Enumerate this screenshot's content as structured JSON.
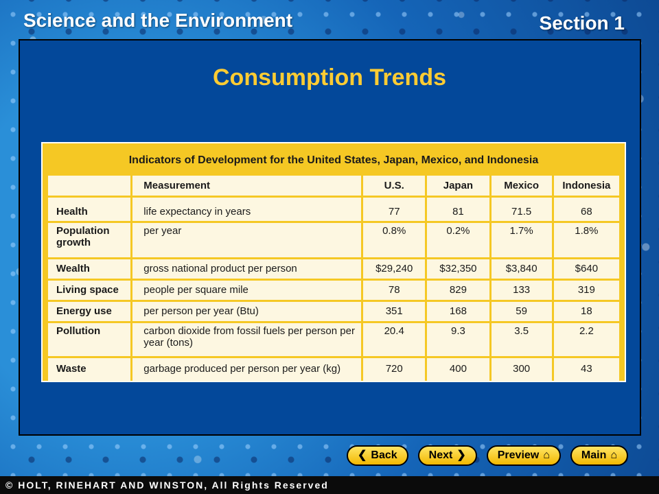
{
  "header": {
    "title": "Science and the Environment",
    "section": "Section 1"
  },
  "slide": {
    "title": "Consumption Trends"
  },
  "table": {
    "caption": "Indicators of Development for the United States, Japan, Mexico, and Indonesia",
    "columns": [
      "",
      "Measurement",
      "U.S.",
      "Japan",
      "Mexico",
      "Indonesia"
    ],
    "rows": [
      {
        "category": "Health",
        "measurement": "life expectancy in years",
        "us": "77",
        "japan": "81",
        "mexico": "71.5",
        "indonesia": "68"
      },
      {
        "category": "Population growth",
        "measurement": "per year",
        "us": "0.8%",
        "japan": "0.2%",
        "mexico": "1.7%",
        "indonesia": "1.8%"
      },
      {
        "category": "Wealth",
        "measurement": "gross national product per person",
        "us": "$29,240",
        "japan": "$32,350",
        "mexico": "$3,840",
        "indonesia": "$640"
      },
      {
        "category": "Living space",
        "measurement": "people per square mile",
        "us": "78",
        "japan": "829",
        "mexico": "133",
        "indonesia": "319"
      },
      {
        "category": "Energy use",
        "measurement": "per person per year (Btu)",
        "us": "351",
        "japan": "168",
        "mexico": "59",
        "indonesia": "18"
      },
      {
        "category": "Pollution",
        "measurement": "carbon dioxide from fossil fuels per person per year (tons)",
        "us": "20.4",
        "japan": "9.3",
        "mexico": "3.5",
        "indonesia": "2.2"
      },
      {
        "category": "Waste",
        "measurement": "garbage produced per person per year (kg)",
        "us": "720",
        "japan": "400",
        "mexico": "300",
        "indonesia": "43"
      }
    ]
  },
  "nav": {
    "back_label": "Back",
    "next_label": "Next",
    "preview_label": "Preview",
    "main_label": "Main",
    "back_icon": "chevron-left-icon",
    "next_icon": "chevron-right-icon",
    "home_icon": "home-icon"
  },
  "footer": {
    "copyright": "© HOLT, RINEHART AND WINSTON, All Rights Reserved"
  },
  "colors": {
    "panel": "#03489a",
    "title": "#ffcc33",
    "table_frame": "#f5c824",
    "table_cell": "#fdf7e1",
    "button": "#f2b800"
  }
}
